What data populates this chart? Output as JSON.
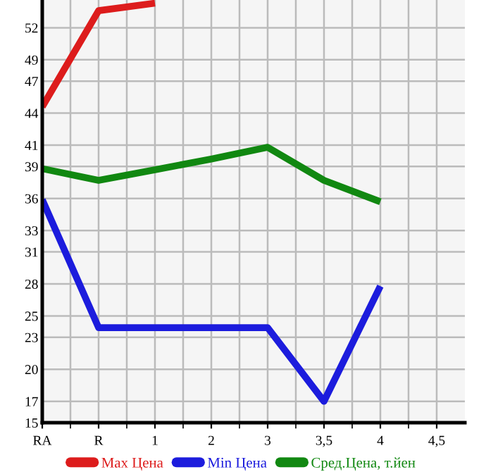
{
  "chart_data": {
    "type": "line",
    "categories": [
      "RA",
      "R",
      "1",
      "2",
      "3",
      "3,5",
      "4",
      "4,5"
    ],
    "series": [
      {
        "name": "Max Цена",
        "color": "#dd1c1c",
        "values": [
          44.6,
          53.6,
          54.3,
          null,
          null,
          null,
          null,
          null
        ]
      },
      {
        "name": "Min Цена",
        "color": "#1c1cdd",
        "values": [
          35.9,
          23.9,
          23.9,
          23.9,
          23.9,
          17.0,
          27.8,
          null
        ]
      },
      {
        "name": "Сред.Цена, т.йен",
        "color": "#118811",
        "values": [
          38.8,
          37.7,
          38.7,
          39.7,
          40.8,
          37.7,
          35.7,
          null
        ]
      }
    ],
    "ylim": [
      15,
      54.6
    ],
    "yticks": [
      15,
      17,
      20,
      23,
      25,
      28,
      31,
      33,
      36,
      39,
      41,
      44,
      47,
      49,
      52
    ],
    "grid": true,
    "legend": "bottom",
    "marker": "none",
    "line_style": "solid"
  }
}
